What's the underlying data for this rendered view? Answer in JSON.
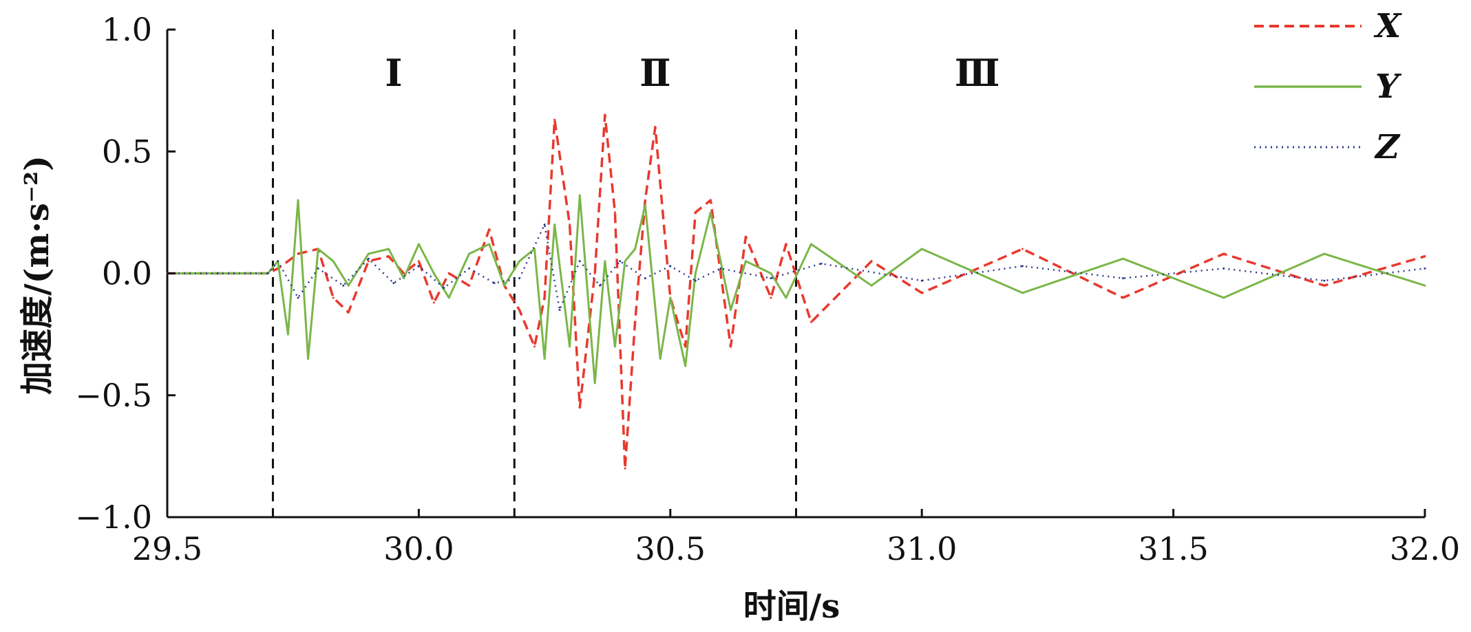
{
  "chart_data": {
    "type": "line",
    "title": "",
    "xlabel": "时间/s",
    "ylabel": "加速度/(m·s⁻²)",
    "xlim": [
      29.5,
      32.0
    ],
    "ylim": [
      -1.0,
      1.0
    ],
    "x_ticks": [
      "29.5",
      "30.0",
      "30.5",
      "31.0",
      "31.5",
      "32.0"
    ],
    "y_ticks": [
      "1.0",
      "0.5",
      "0.0",
      "−0.5",
      "−1.0"
    ],
    "grid": false,
    "legend_position": "top-right",
    "phase_boundaries": [
      29.71,
      30.19,
      30.75
    ],
    "phases": [
      {
        "label": "Ⅰ",
        "x": 29.95
      },
      {
        "label": "Ⅱ",
        "x": 30.47
      },
      {
        "label": "Ⅲ",
        "x": 31.11
      }
    ],
    "series": [
      {
        "name": "X",
        "color": "#e8392e",
        "style": "dashed",
        "x": [
          29.5,
          29.6,
          29.7,
          29.72,
          29.76,
          29.8,
          29.83,
          29.86,
          29.9,
          29.94,
          29.97,
          30.0,
          30.03,
          30.06,
          30.1,
          30.14,
          30.17,
          30.2,
          30.23,
          30.25,
          30.27,
          30.3,
          30.32,
          30.35,
          30.37,
          30.39,
          30.41,
          30.43,
          30.45,
          30.47,
          30.5,
          30.53,
          30.55,
          30.58,
          30.62,
          30.65,
          30.7,
          30.73,
          30.78,
          30.9,
          31.0,
          31.2,
          31.4,
          31.6,
          31.8,
          32.0
        ],
        "values": [
          0.0,
          0.0,
          0.0,
          0.02,
          0.08,
          0.1,
          -0.1,
          -0.16,
          0.05,
          0.07,
          0.0,
          0.05,
          -0.12,
          0.0,
          -0.05,
          0.18,
          -0.05,
          -0.15,
          -0.3,
          -0.1,
          0.63,
          0.2,
          -0.55,
          0.0,
          0.65,
          0.25,
          -0.8,
          -0.2,
          0.3,
          0.6,
          -0.1,
          -0.3,
          0.25,
          0.3,
          -0.3,
          0.15,
          -0.1,
          0.12,
          -0.2,
          0.05,
          -0.08,
          0.1,
          -0.1,
          0.08,
          -0.05,
          0.07
        ]
      },
      {
        "name": "Y",
        "color": "#7ab648",
        "style": "solid",
        "x": [
          29.5,
          29.6,
          29.7,
          29.72,
          29.74,
          29.76,
          29.78,
          29.8,
          29.83,
          29.86,
          29.9,
          29.94,
          29.97,
          30.0,
          30.03,
          30.06,
          30.1,
          30.14,
          30.17,
          30.2,
          30.23,
          30.25,
          30.27,
          30.3,
          30.32,
          30.35,
          30.37,
          30.39,
          30.41,
          30.43,
          30.45,
          30.48,
          30.5,
          30.53,
          30.55,
          30.58,
          30.62,
          30.65,
          30.7,
          30.73,
          30.78,
          30.9,
          31.0,
          31.2,
          31.4,
          31.6,
          31.8,
          32.0
        ],
        "values": [
          0.0,
          0.0,
          0.0,
          0.05,
          -0.25,
          0.3,
          -0.35,
          0.1,
          0.05,
          -0.05,
          0.08,
          0.1,
          -0.02,
          0.12,
          0.0,
          -0.1,
          0.08,
          0.12,
          -0.05,
          0.05,
          0.1,
          -0.35,
          0.2,
          -0.3,
          0.32,
          -0.45,
          0.05,
          -0.3,
          0.05,
          0.1,
          0.28,
          -0.35,
          -0.1,
          -0.38,
          0.0,
          0.25,
          -0.15,
          0.05,
          0.0,
          -0.1,
          0.12,
          -0.05,
          0.1,
          -0.08,
          0.06,
          -0.1,
          0.08,
          -0.05
        ]
      },
      {
        "name": "Z",
        "color": "#2c3a8c",
        "style": "dotted",
        "x": [
          29.5,
          29.6,
          29.7,
          29.72,
          29.76,
          29.8,
          29.85,
          29.9,
          29.95,
          30.0,
          30.05,
          30.1,
          30.15,
          30.2,
          30.25,
          30.28,
          30.32,
          30.36,
          30.4,
          30.45,
          30.5,
          30.55,
          30.6,
          30.7,
          30.8,
          31.0,
          31.2,
          31.4,
          31.6,
          31.8,
          32.0
        ],
        "values": [
          0.0,
          0.0,
          0.0,
          0.05,
          -0.1,
          0.02,
          -0.05,
          0.06,
          -0.04,
          0.03,
          -0.06,
          0.02,
          -0.04,
          -0.02,
          0.2,
          -0.15,
          0.05,
          -0.05,
          0.05,
          -0.02,
          0.03,
          -0.03,
          0.02,
          -0.02,
          0.04,
          -0.03,
          0.03,
          -0.02,
          0.02,
          -0.03,
          0.02
        ]
      }
    ]
  }
}
